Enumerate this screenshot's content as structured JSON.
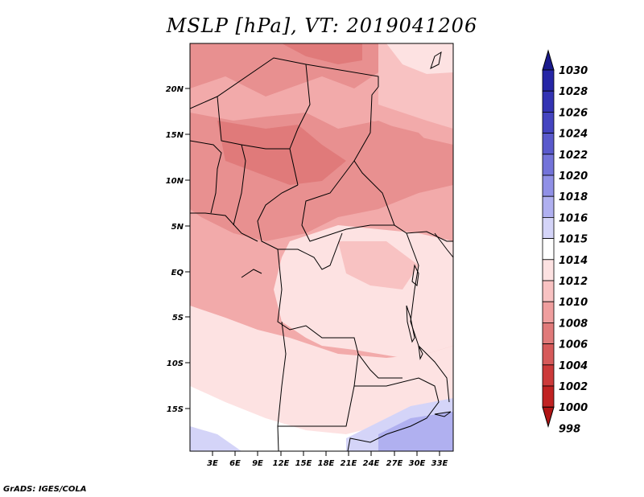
{
  "title": "MSLP [hPa], VT: 2019041206",
  "footer": "GrADS: IGES/COLA",
  "map": {
    "lat_labels": [
      "20N",
      "15N",
      "10N",
      "5N",
      "EQ",
      "5S",
      "10S",
      "15S"
    ],
    "lon_labels": [
      "3E",
      "6E",
      "9E",
      "12E",
      "15E",
      "18E",
      "21E",
      "24E",
      "27E",
      "30E",
      "33E"
    ]
  },
  "colorbar": {
    "levels": [
      "1030",
      "1028",
      "1026",
      "1024",
      "1022",
      "1020",
      "1018",
      "1016",
      "1015",
      "1014",
      "1012",
      "1010",
      "1008",
      "1006",
      "1004",
      "1002",
      "1000",
      "998"
    ],
    "colors": [
      "#1a1a8c",
      "#2626a6",
      "#3333b3",
      "#4444c0",
      "#5959cc",
      "#7373d9",
      "#9090e6",
      "#b0b0f0",
      "#d4d4f8",
      "#ffffff",
      "#fde2e2",
      "#f8c2c2",
      "#ef9e9e",
      "#e07a7a",
      "#d65a5a",
      "#cc3a3a",
      "#c02222",
      "#b01414"
    ]
  }
}
